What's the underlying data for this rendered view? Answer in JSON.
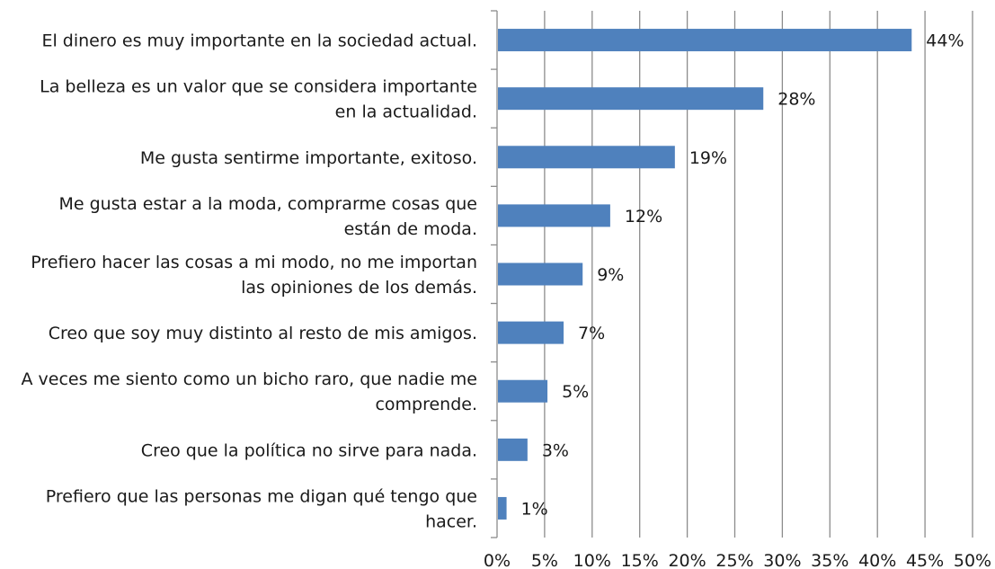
{
  "chart_data": {
    "type": "bar",
    "orientation": "horizontal",
    "categories": [
      "El dinero es muy importante en la sociedad actual.",
      "La belleza es un valor que se considera importante en la actualidad.",
      "Me gusta sentirme importante, exitoso.",
      "Me gusta estar a la moda, comprarme cosas que están de moda.",
      "Prefiero hacer las cosas a mi modo, no me importan las opiniones de los demás.",
      "Creo que soy muy distinto al resto de mis amigos.",
      "A veces me siento como un bicho raro, que nadie me comprende.",
      "Creo que la política no sirve para nada.",
      "Prefiero que las personas me digan qué tengo que hacer."
    ],
    "category_lines": [
      [
        "El dinero es muy importante en la sociedad actual."
      ],
      [
        "La belleza es un valor que se considera importante",
        "en la actualidad."
      ],
      [
        "Me gusta sentirme importante, exitoso."
      ],
      [
        "Me gusta estar a la moda, comprarme cosas que",
        "están de moda."
      ],
      [
        "Prefiero hacer las cosas a mi modo, no me importan",
        "las opiniones de los demás."
      ],
      [
        "Creo que soy muy distinto al resto de mis amigos."
      ],
      [
        "A veces me siento como un bicho raro, que nadie me",
        "comprende."
      ],
      [
        "Creo que la política no sirve para nada."
      ],
      [
        "Prefiero que las personas me digan qué tengo que",
        "hacer."
      ]
    ],
    "values": [
      43.6,
      28.0,
      18.7,
      11.9,
      9.0,
      7.0,
      5.3,
      3.2,
      1.0
    ],
    "value_labels": [
      "44%",
      "28%",
      "19%",
      "12%",
      "9%",
      "7%",
      "5%",
      "3%",
      "1%"
    ],
    "xlim": [
      0,
      50
    ],
    "x_ticks": [
      0,
      5,
      10,
      15,
      20,
      25,
      30,
      35,
      40,
      45,
      50
    ],
    "x_tick_labels": [
      "0%",
      "5%",
      "10%",
      "15%",
      "20%",
      "25%",
      "30%",
      "35%",
      "40%",
      "45%",
      "50%"
    ],
    "grid": true,
    "legend": "none",
    "title": "",
    "xlabel": "",
    "ylabel": "",
    "colors": {
      "bar": "#4f81bd",
      "grid": "#8c8c8c",
      "text": "#1a1a1a"
    }
  }
}
